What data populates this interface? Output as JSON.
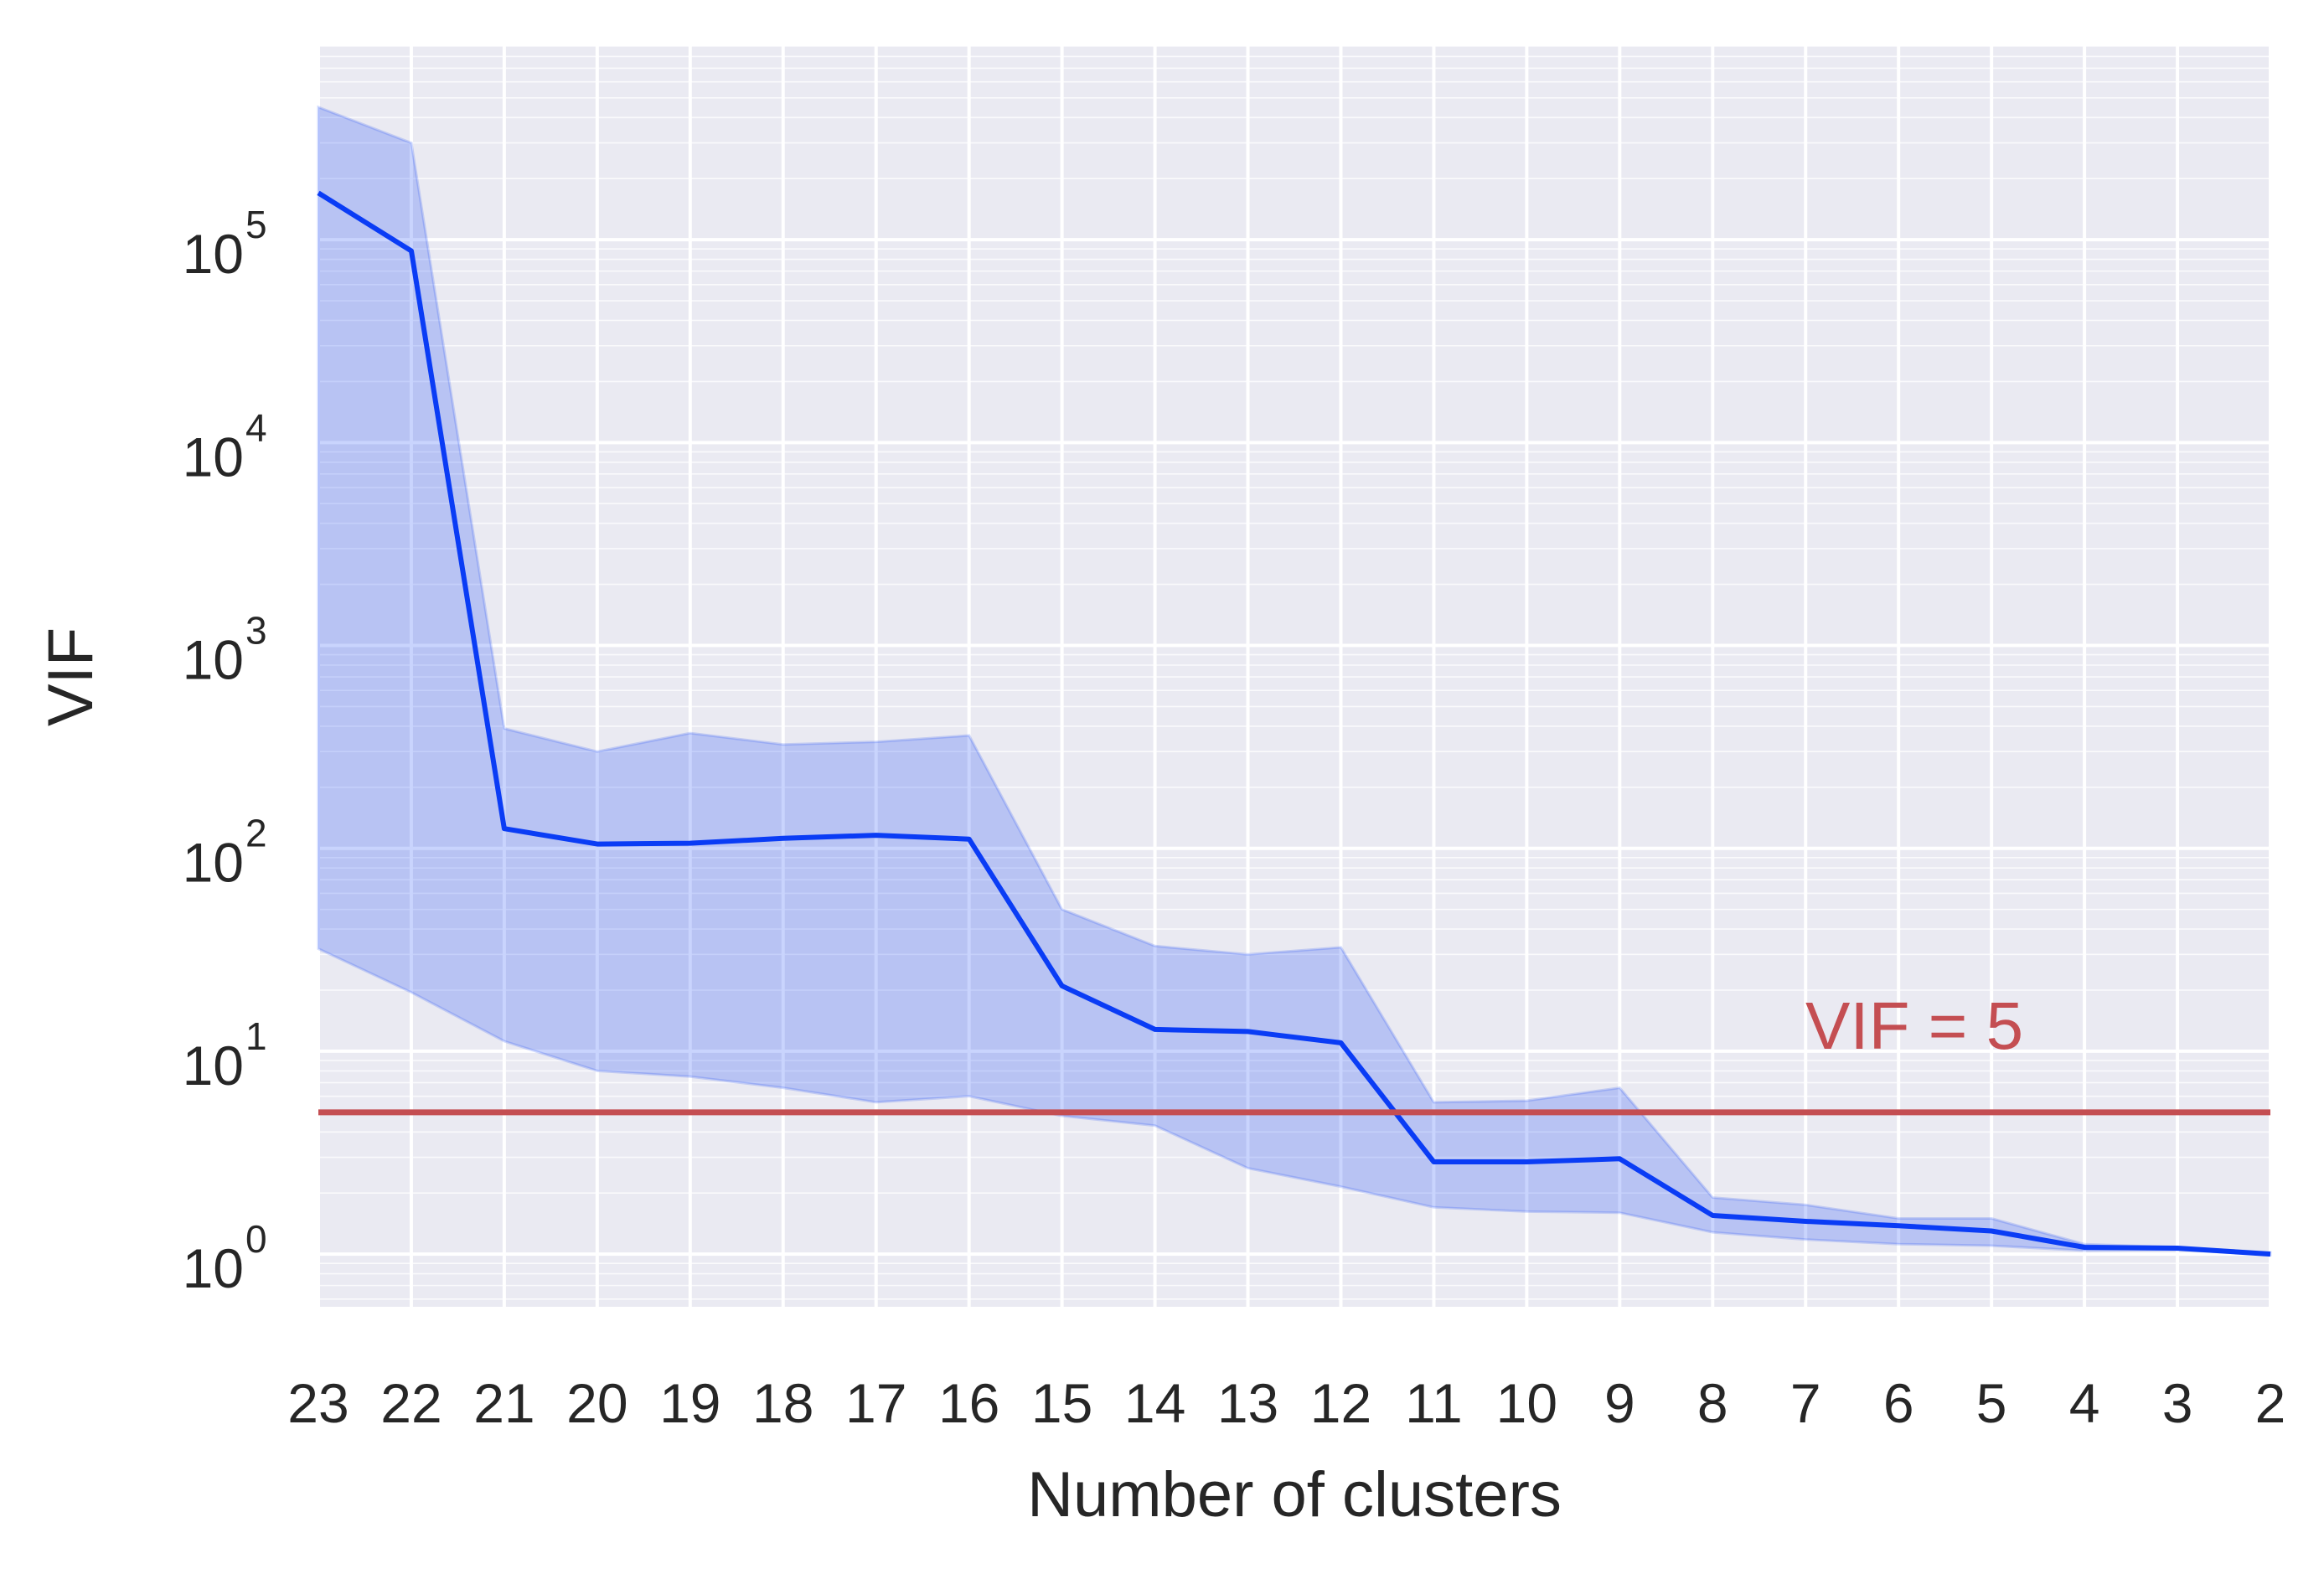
{
  "chart_data": {
    "type": "line",
    "title": "",
    "xlabel": "Number of clusters",
    "ylabel": "VIF",
    "y_scale": "log",
    "ylim": [
      0.55,
      900000
    ],
    "y_ticks": [
      {
        "value": 1,
        "base": "10",
        "exp": "0"
      },
      {
        "value": 10,
        "base": "10",
        "exp": "1"
      },
      {
        "value": 100,
        "base": "10",
        "exp": "2"
      },
      {
        "value": 1000,
        "base": "10",
        "exp": "3"
      },
      {
        "value": 10000,
        "base": "10",
        "exp": "4"
      },
      {
        "value": 100000,
        "base": "10",
        "exp": "5"
      }
    ],
    "x_descending": true,
    "x": [
      23,
      22,
      21,
      20,
      19,
      18,
      17,
      16,
      15,
      14,
      13,
      12,
      11,
      10,
      9,
      8,
      7,
      6,
      5,
      4,
      3,
      2
    ],
    "x_tick_labels": [
      "23",
      "22",
      "21",
      "20",
      "19",
      "18",
      "17",
      "16",
      "15",
      "14",
      "13",
      "12",
      "11",
      "10",
      "9",
      "8",
      "7",
      "6",
      "5",
      "4",
      "3",
      "2"
    ],
    "grid": true,
    "series": [
      {
        "color": "#0a3cf5",
        "band_color": "#0a3cf5",
        "values": [
          170000,
          88000,
          125,
          105,
          106,
          112,
          116,
          111,
          21,
          12.8,
          12.5,
          11,
          2.85,
          2.85,
          2.95,
          1.55,
          1.45,
          1.38,
          1.3,
          1.08,
          1.07,
          1.0
        ],
        "upper": [
          450000,
          300000,
          390,
          300,
          370,
          325,
          335,
          360,
          50,
          33,
          30,
          32.5,
          5.6,
          5.7,
          6.6,
          1.9,
          1.75,
          1.5,
          1.5,
          1.12,
          1.08,
          1.02
        ],
        "lower": [
          32,
          19.5,
          11.2,
          8,
          7.5,
          6.6,
          5.6,
          6.0,
          4.8,
          4.3,
          2.65,
          2.15,
          1.7,
          1.62,
          1.6,
          1.28,
          1.18,
          1.12,
          1.1,
          1.04,
          1.05,
          0.99
        ]
      }
    ],
    "reference_line": {
      "y": 5,
      "color": "#c44e52",
      "label": "VIF = 5"
    }
  }
}
